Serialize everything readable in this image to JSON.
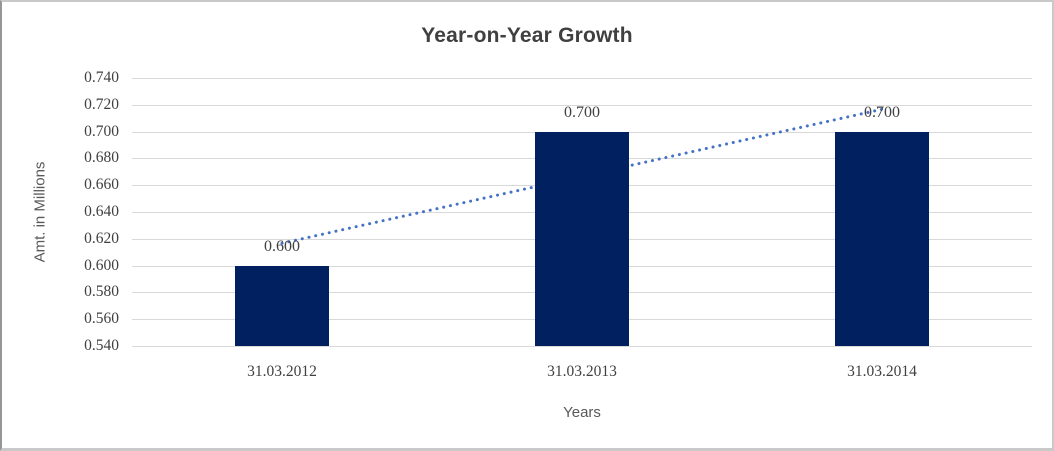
{
  "chart_data": {
    "type": "bar",
    "title": "Year-on-Year Growth",
    "xlabel": "Years",
    "ylabel": "Amt. in Millions",
    "categories": [
      "31.03.2012",
      "31.03.2013",
      "31.03.2014"
    ],
    "values": [
      0.6,
      0.7,
      0.7
    ],
    "data_labels": [
      "0.600",
      "0.700",
      "0.700"
    ],
    "ylim": [
      0.54,
      0.74
    ],
    "ytick_step": 0.02,
    "yticks": [
      "0.740",
      "0.720",
      "0.700",
      "0.680",
      "0.660",
      "0.640",
      "0.620",
      "0.600",
      "0.580",
      "0.560",
      "0.540"
    ],
    "grid": true,
    "legend": false,
    "trendline": {
      "type": "linear",
      "style": "dotted",
      "start_value": 0.61667,
      "end_value": 0.71667
    },
    "colors": {
      "bar": "#002060",
      "trendline": "#4472c4",
      "gridline": "#d9d9d9",
      "title": "#404040",
      "tick_label": "#404040",
      "axis_title": "#595959",
      "background": "#ffffff"
    }
  }
}
